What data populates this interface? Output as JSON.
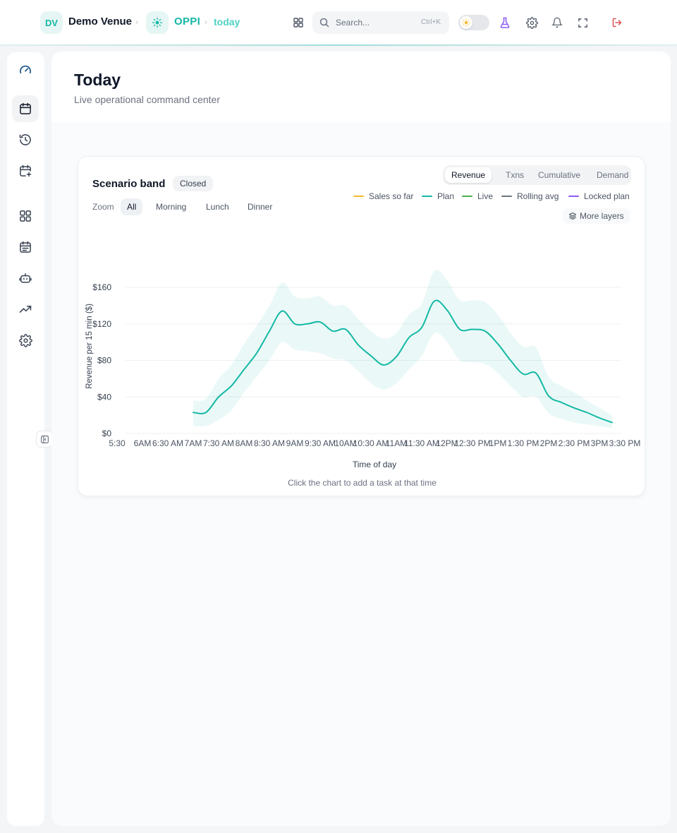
{
  "topbar": {
    "venue_initials": "DV",
    "venue_name": "Demo Venue",
    "app_name": "OPPI",
    "breadcrumb_page": "today",
    "search_placeholder": "Search...",
    "search_shortcut": "Ctrl+K",
    "icons": [
      "apps-grid-icon",
      "search-icon",
      "sun-icon",
      "flask-icon",
      "gear-icon",
      "bell-icon",
      "fullscreen-icon",
      "logout-icon"
    ]
  },
  "sidebar": {
    "items": [
      "dashboard-gauge-icon",
      "calendar-icon",
      "history-icon",
      "calendar-plus-icon",
      "grid-icon",
      "schedule-list-icon",
      "robot-icon",
      "trend-icon",
      "settings-icon"
    ],
    "active": "calendar-icon"
  },
  "page": {
    "title": "Today",
    "subtitle": "Live operational command center"
  },
  "card": {
    "title": "Scenario band",
    "status_badge": "Closed",
    "zoom_label": "Zoom",
    "zoom_options": [
      "All",
      "Morning",
      "Lunch",
      "Dinner"
    ],
    "zoom_selected": "All",
    "metric_tabs": [
      "Revenue",
      "Txns",
      "Cumulative",
      "Demand"
    ],
    "metric_selected": "Revenue",
    "legend": [
      {
        "label": "Sales so far",
        "color": "#f5b82e"
      },
      {
        "label": "Plan",
        "color": "#14b8a6"
      },
      {
        "label": "Live",
        "color": "#4caf50"
      },
      {
        "label": "Rolling avg",
        "color": "#6b7280"
      },
      {
        "label": "Locked plan",
        "color": "#8b5cf6"
      }
    ],
    "more_layers": "More layers",
    "hint": "Click the chart to add a task at that time"
  },
  "chart_data": {
    "type": "area",
    "xlabel": "Time of day",
    "ylabel": "Revenue per 15 min ($)",
    "ylim": [
      0,
      160
    ],
    "yticks": [
      0,
      40,
      80,
      120,
      160
    ],
    "ytick_labels": [
      "$0",
      "$40",
      "$80",
      "$120",
      "$160"
    ],
    "xlim": [
      "5:30AM",
      "3:30 PM"
    ],
    "xticks": [
      "5:30",
      "6AM",
      "6:30 AM",
      "7AM",
      "7:30 AM",
      "8AM",
      "8:30 AM",
      "9AM",
      "9:30 AM",
      "10AM",
      "10:30 AM",
      "11AM",
      "11:30 AM",
      "12PM",
      "12:30 PM",
      "1PM",
      "1:30 PM",
      "2PM",
      "2:30 PM",
      "3PM",
      "3:30 PM"
    ],
    "grid": true,
    "series": [
      {
        "name": "Plan",
        "color": "#14b8a6",
        "x": [
          "7:00",
          "7:15",
          "7:30",
          "7:45",
          "8:00",
          "8:15",
          "8:30",
          "8:45",
          "9:00",
          "9:15",
          "9:30",
          "9:45",
          "10:00",
          "10:15",
          "10:30",
          "10:45",
          "11:00",
          "11:15",
          "11:30",
          "11:45",
          "12:00",
          "12:15",
          "12:30",
          "12:45",
          "13:00",
          "13:15",
          "13:30",
          "13:45",
          "14:00",
          "14:15",
          "14:30",
          "14:45",
          "15:00",
          "15:15"
        ],
        "y": [
          23,
          23,
          40,
          52,
          70,
          88,
          112,
          134,
          120,
          120,
          122,
          112,
          114,
          97,
          85,
          75,
          84,
          105,
          116,
          145,
          135,
          114,
          114,
          112,
          98,
          80,
          65,
          66,
          41,
          34,
          28,
          23,
          17,
          12
        ],
        "band_low": [
          8,
          8,
          15,
          25,
          45,
          62,
          80,
          100,
          92,
          90,
          88,
          82,
          80,
          68,
          55,
          48,
          55,
          70,
          85,
          110,
          100,
          80,
          78,
          76,
          66,
          52,
          40,
          40,
          22,
          16,
          12,
          10,
          8,
          6
        ],
        "band_high": [
          36,
          38,
          60,
          75,
          98,
          118,
          140,
          165,
          150,
          148,
          150,
          140,
          140,
          125,
          112,
          104,
          110,
          130,
          142,
          178,
          168,
          146,
          146,
          144,
          130,
          110,
          95,
          94,
          62,
          52,
          45,
          36,
          28,
          20
        ]
      }
    ]
  }
}
